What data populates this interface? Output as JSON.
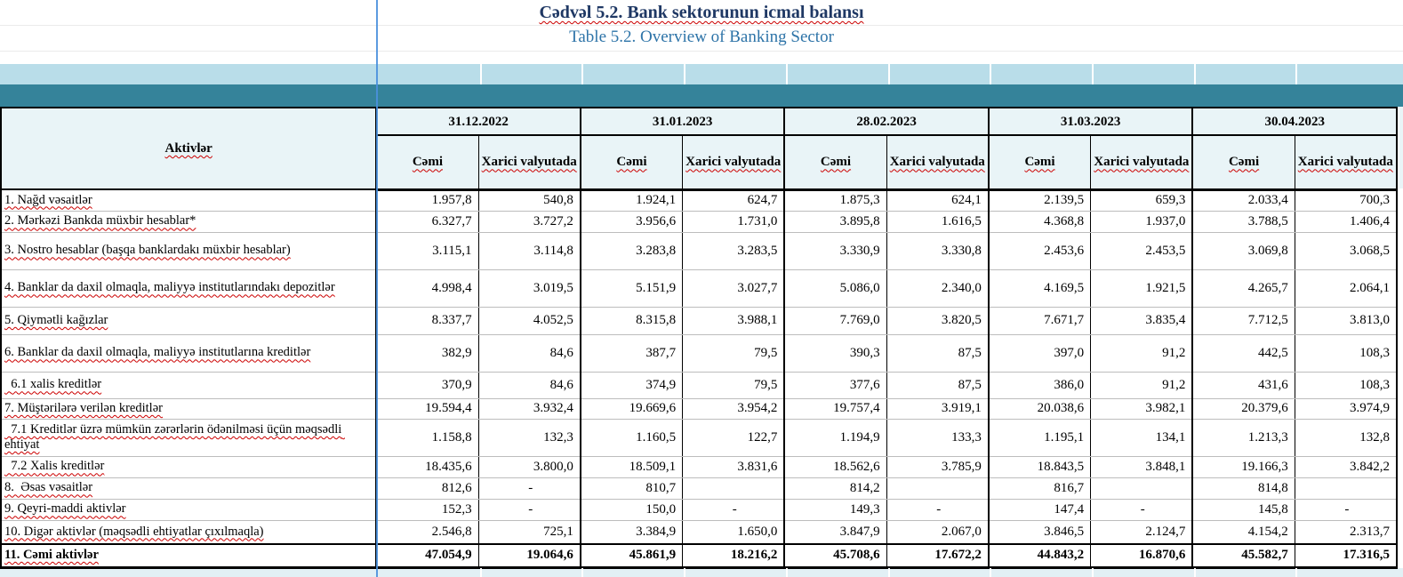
{
  "title": {
    "az": "Cədvəl 5.2. Bank sektorunun icmal balansı",
    "en": "Table 5.2. Overview of Banking Sector"
  },
  "colors": {
    "band_teal": "#35839a",
    "band_light_blue": "#b9dde9",
    "header_cell_bg": "#e9f4f7",
    "title_navy": "#1f3864",
    "subtitle_blue": "#2e74a8",
    "freeze_line_blue": "#4a90dd",
    "spellcheck_red": "#cc0000"
  },
  "table": {
    "row_header": "Aktivlər",
    "date_columns": [
      "31.12.2022",
      "31.01.2023",
      "28.02.2023",
      "31.03.2023",
      "30.04.2023"
    ],
    "subcolumns": [
      "Cəmi",
      "Xarici valyutada"
    ],
    "rows": [
      {
        "label": "1. Nağd vəsaitlər",
        "values": [
          "1.957,8",
          "540,8",
          "1.924,1",
          "624,7",
          "1.875,3",
          "624,1",
          "2.139,5",
          "659,3",
          "2.033,4",
          "700,3"
        ]
      },
      {
        "label": "2. Mərkəzi Bankda müxbir hesablar*",
        "values": [
          "6.327,7",
          "3.727,2",
          "3.956,6",
          "1.731,0",
          "3.895,8",
          "1.616,5",
          "4.368,8",
          "1.937,0",
          "3.788,5",
          "1.406,4"
        ]
      },
      {
        "label": "3. Nostro hesablar (başqa banklardakı müxbir hesablar)",
        "values": [
          "3.115,1",
          "3.114,8",
          "3.283,8",
          "3.283,5",
          "3.330,9",
          "3.330,8",
          "2.453,6",
          "2.453,5",
          "3.069,8",
          "3.068,5"
        ]
      },
      {
        "label": "4. Banklar da daxil olmaqla, maliyyə institutlarındakı depozitlər",
        "values": [
          "4.998,4",
          "3.019,5",
          "5.151,9",
          "3.027,7",
          "5.086,0",
          "2.340,0",
          "4.169,5",
          "1.921,5",
          "4.265,7",
          "2.064,1"
        ]
      },
      {
        "label": "5. Qiymətli kağızlar",
        "values": [
          "8.337,7",
          "4.052,5",
          "8.315,8",
          "3.988,1",
          "7.769,0",
          "3.820,5",
          "7.671,7",
          "3.835,4",
          "7.712,5",
          "3.813,0"
        ]
      },
      {
        "label": "6. Banklar da daxil olmaqla, maliyyə institutlarına kreditlər",
        "values": [
          "382,9",
          "84,6",
          "387,7",
          "79,5",
          "390,3",
          "87,5",
          "397,0",
          "91,2",
          "442,5",
          "108,3"
        ]
      },
      {
        "label": "  6.1 xalis kreditlər",
        "values": [
          "370,9",
          "84,6",
          "374,9",
          "79,5",
          "377,6",
          "87,5",
          "386,0",
          "91,2",
          "431,6",
          "108,3"
        ]
      },
      {
        "label": "7. Müştərilərə verilən kreditlər",
        "values": [
          "19.594,4",
          "3.932,4",
          "19.669,6",
          "3.954,2",
          "19.757,4",
          "3.919,1",
          "20.038,6",
          "3.982,1",
          "20.379,6",
          "3.974,9"
        ]
      },
      {
        "label": "  7.1 Kreditlər üzrə mümkün zərərlərin ödənilməsi üçün məqsədli ehtiyat",
        "values": [
          "1.158,8",
          "132,3",
          "1.160,5",
          "122,7",
          "1.194,9",
          "133,3",
          "1.195,1",
          "134,1",
          "1.213,3",
          "132,8"
        ]
      },
      {
        "label": "  7.2 Xalis kreditlər",
        "values": [
          "18.435,6",
          "3.800,0",
          "18.509,1",
          "3.831,6",
          "18.562,6",
          "3.785,9",
          "18.843,5",
          "3.848,1",
          "19.166,3",
          "3.842,2"
        ]
      },
      {
        "label": "8.  Əsas vəsaitlər",
        "values": [
          "812,6",
          "-",
          "810,7",
          "",
          "814,2",
          "",
          "816,7",
          "",
          "814,8",
          ""
        ]
      },
      {
        "label": "9. Qeyri-maddi aktivlər",
        "values": [
          "152,3",
          "-",
          "150,0",
          "-",
          "149,3",
          "-",
          "147,4",
          "-",
          "145,8",
          "-"
        ]
      },
      {
        "label": "10. Digər aktivlər (məqsədli ehtiyatlar çıxılmaqla)",
        "values": [
          "2.546,8",
          "725,1",
          "3.384,9",
          "1.650,0",
          "3.847,9",
          "2.067,0",
          "3.846,5",
          "2.124,7",
          "4.154,2",
          "2.313,7"
        ]
      },
      {
        "label": "11. Cəmi aktivlər",
        "is_total": true,
        "values": [
          "47.054,9",
          "19.064,6",
          "45.861,9",
          "18.216,2",
          "45.708,6",
          "17.672,2",
          "44.843,2",
          "16.870,6",
          "45.582,7",
          "17.316,5"
        ]
      }
    ]
  }
}
